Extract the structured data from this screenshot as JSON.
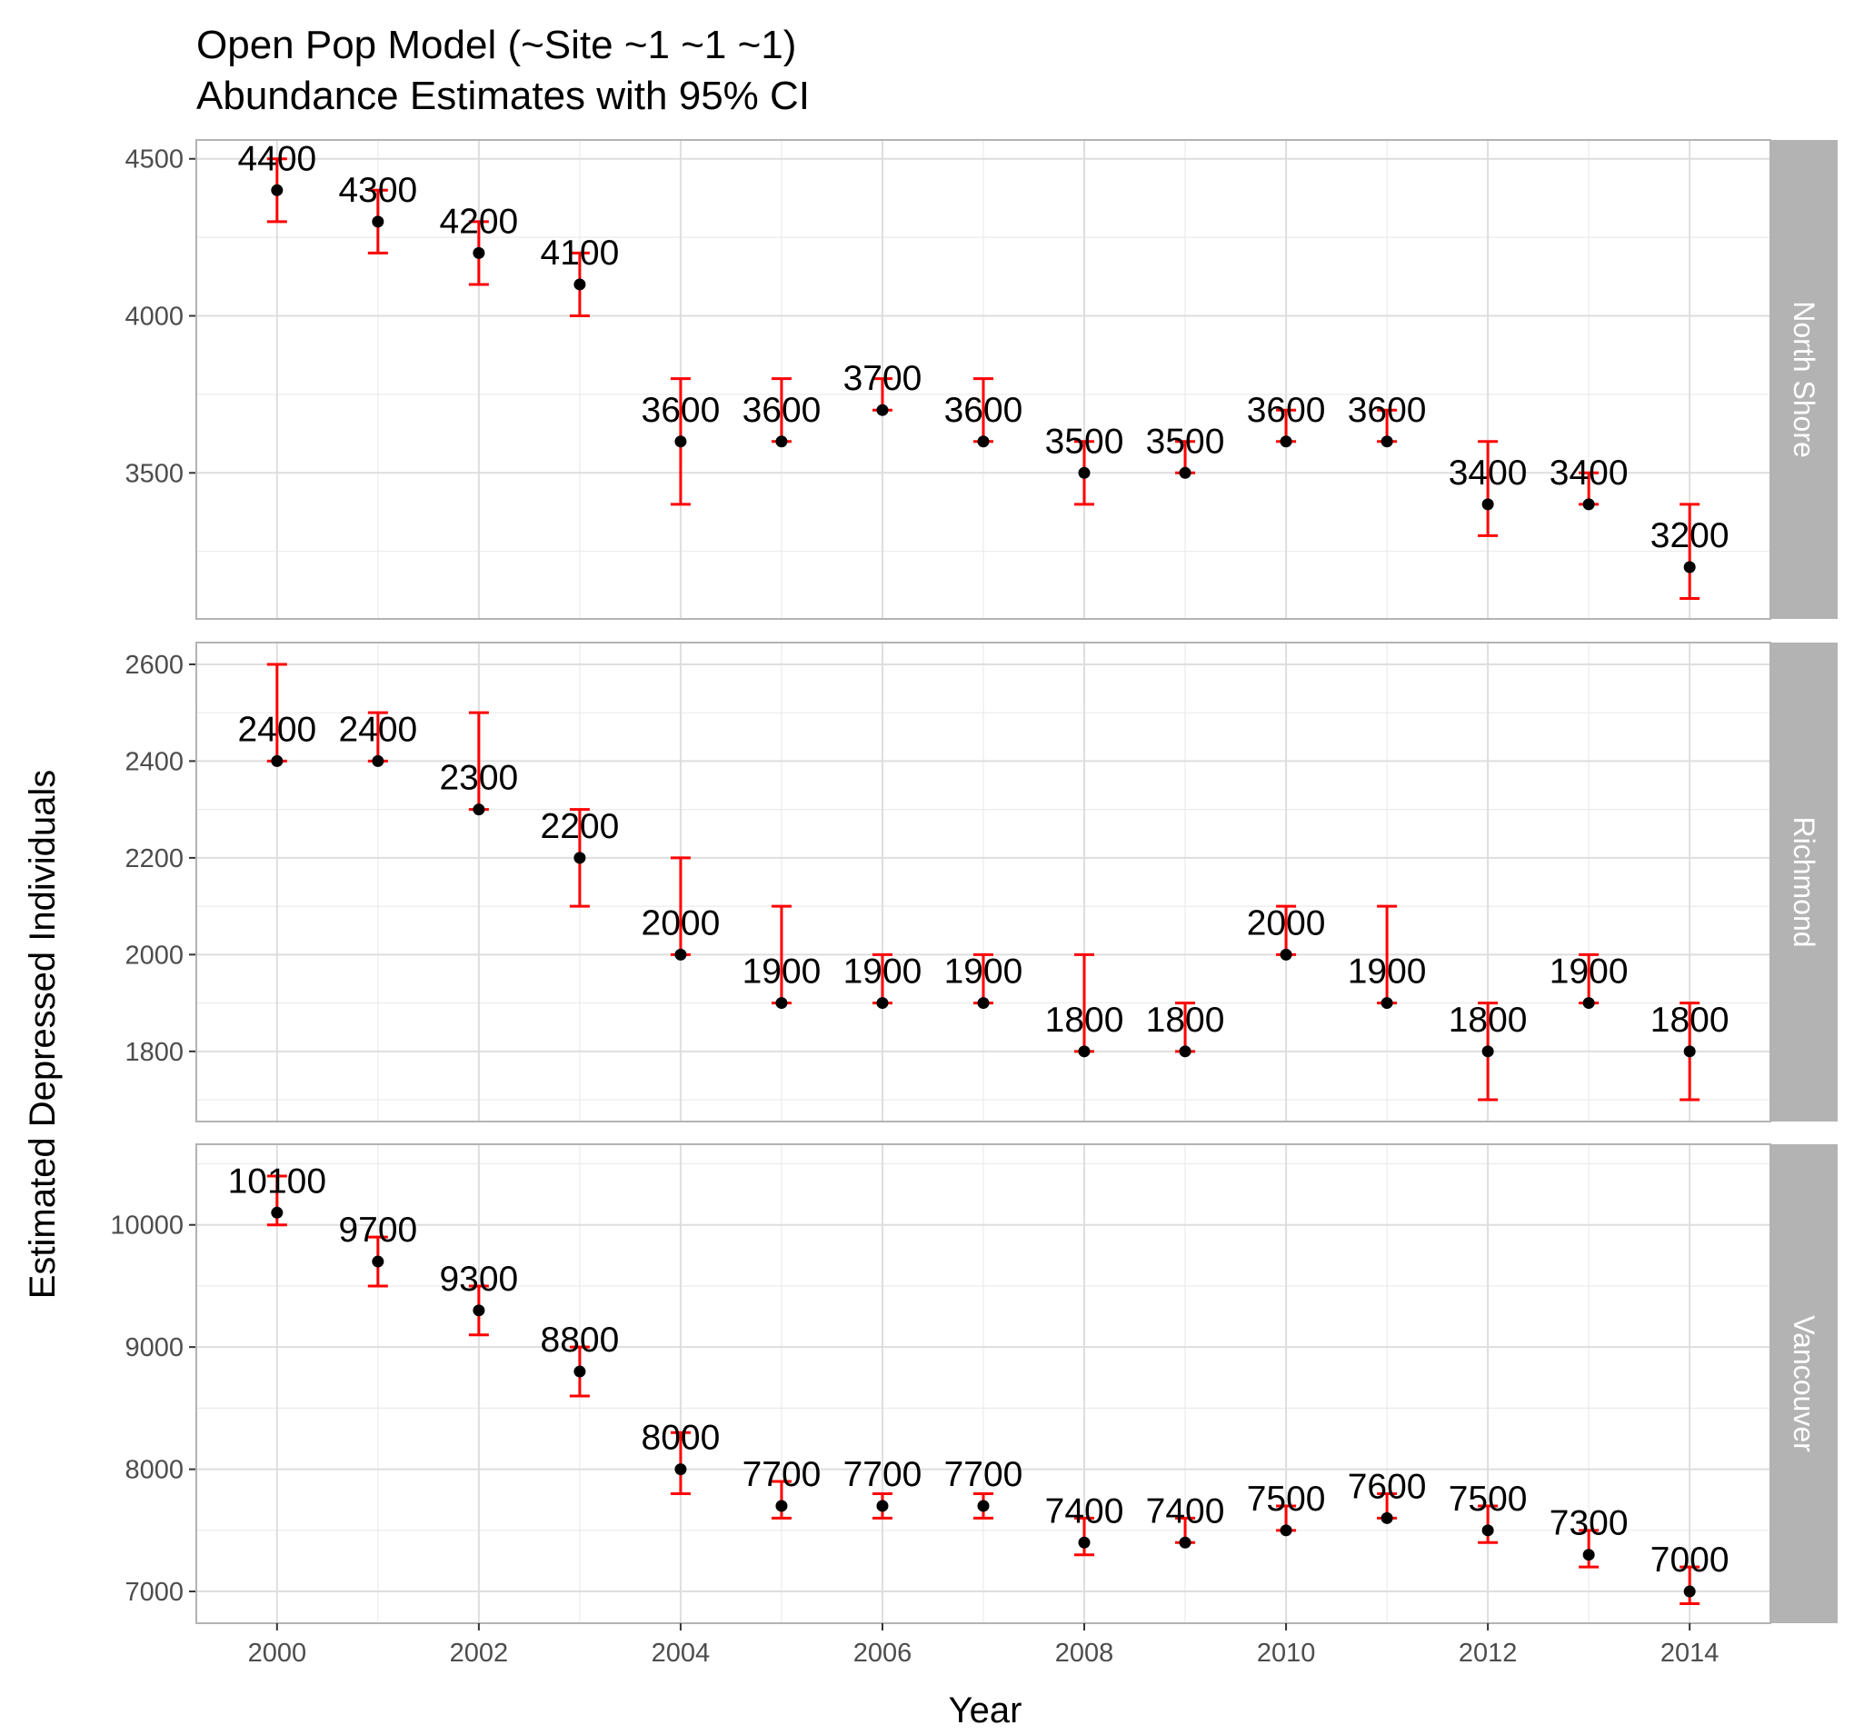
{
  "chart_data": {
    "type": "scatter",
    "title": "Open Pop Model (~Site ~1 ~1 ~1)",
    "subtitle": "Abundance Estimates with 95% CI",
    "xlabel": "Year",
    "ylabel": "Estimated Depressed Individuals",
    "x_ticks": [
      "2000",
      "2002",
      "2004",
      "2006",
      "2008",
      "2010",
      "2012",
      "2014"
    ],
    "xlim": [
      1999.2,
      2014.8
    ],
    "grid": true,
    "point_color": "#000000",
    "errorbar_color": "#ff0000",
    "strip_color": "#b3b3b3",
    "panels": [
      {
        "facet": "North Shore",
        "ylim": [
          3035,
          4560
        ],
        "y_ticks": [
          "3500",
          "4000",
          "4500"
        ],
        "points": [
          {
            "x": 2000,
            "y": 4400,
            "lo": 4300,
            "hi": 4500,
            "label": "4400"
          },
          {
            "x": 2001,
            "y": 4300,
            "lo": 4200,
            "hi": 4400,
            "label": "4300"
          },
          {
            "x": 2002,
            "y": 4200,
            "lo": 4100,
            "hi": 4300,
            "label": "4200"
          },
          {
            "x": 2003,
            "y": 4100,
            "lo": 4000,
            "hi": 4200,
            "label": "4100"
          },
          {
            "x": 2004,
            "y": 3600,
            "lo": 3400,
            "hi": 3800,
            "label": "3600"
          },
          {
            "x": 2005,
            "y": 3600,
            "lo": 3600,
            "hi": 3800,
            "label": "3600"
          },
          {
            "x": 2006,
            "y": 3700,
            "lo": 3700,
            "hi": 3800,
            "label": "3700"
          },
          {
            "x": 2007,
            "y": 3600,
            "lo": 3600,
            "hi": 3800,
            "label": "3600"
          },
          {
            "x": 2008,
            "y": 3500,
            "lo": 3400,
            "hi": 3600,
            "label": "3500"
          },
          {
            "x": 2009,
            "y": 3500,
            "lo": 3500,
            "hi": 3600,
            "label": "3500"
          },
          {
            "x": 2010,
            "y": 3600,
            "lo": 3600,
            "hi": 3700,
            "label": "3600"
          },
          {
            "x": 2011,
            "y": 3600,
            "lo": 3600,
            "hi": 3700,
            "label": "3600"
          },
          {
            "x": 2012,
            "y": 3400,
            "lo": 3300,
            "hi": 3600,
            "label": "3400"
          },
          {
            "x": 2013,
            "y": 3400,
            "lo": 3400,
            "hi": 3500,
            "label": "3400"
          },
          {
            "x": 2014,
            "y": 3200,
            "lo": 3100,
            "hi": 3400,
            "label": "3200"
          }
        ]
      },
      {
        "facet": "Richmond",
        "ylim": [
          1655,
          2645
        ],
        "y_ticks": [
          "1800",
          "2000",
          "2200",
          "2400",
          "2600"
        ],
        "points": [
          {
            "x": 2000,
            "y": 2400,
            "lo": 2400,
            "hi": 2600,
            "label": "2400"
          },
          {
            "x": 2001,
            "y": 2400,
            "lo": 2400,
            "hi": 2500,
            "label": "2400"
          },
          {
            "x": 2002,
            "y": 2300,
            "lo": 2300,
            "hi": 2500,
            "label": "2300"
          },
          {
            "x": 2003,
            "y": 2200,
            "lo": 2100,
            "hi": 2300,
            "label": "2200"
          },
          {
            "x": 2004,
            "y": 2000,
            "lo": 2000,
            "hi": 2200,
            "label": "2000"
          },
          {
            "x": 2005,
            "y": 1900,
            "lo": 1900,
            "hi": 2100,
            "label": "1900"
          },
          {
            "x": 2006,
            "y": 1900,
            "lo": 1900,
            "hi": 2000,
            "label": "1900"
          },
          {
            "x": 2007,
            "y": 1900,
            "lo": 1900,
            "hi": 2000,
            "label": "1900"
          },
          {
            "x": 2008,
            "y": 1800,
            "lo": 1800,
            "hi": 2000,
            "label": "1800"
          },
          {
            "x": 2009,
            "y": 1800,
            "lo": 1800,
            "hi": 1900,
            "label": "1800"
          },
          {
            "x": 2010,
            "y": 2000,
            "lo": 2000,
            "hi": 2100,
            "label": "2000"
          },
          {
            "x": 2011,
            "y": 1900,
            "lo": 1900,
            "hi": 2100,
            "label": "1900"
          },
          {
            "x": 2012,
            "y": 1800,
            "lo": 1700,
            "hi": 1900,
            "label": "1800"
          },
          {
            "x": 2013,
            "y": 1900,
            "lo": 1900,
            "hi": 2000,
            "label": "1900"
          },
          {
            "x": 2014,
            "y": 1800,
            "lo": 1700,
            "hi": 1900,
            "label": "1800"
          }
        ]
      },
      {
        "facet": "Vancouver",
        "ylim": [
          6740,
          10660
        ],
        "y_ticks": [
          "7000",
          "8000",
          "9000",
          "10000"
        ],
        "points": [
          {
            "x": 2000,
            "y": 10100,
            "lo": 10000,
            "hi": 10400,
            "label": "10100"
          },
          {
            "x": 2001,
            "y": 9700,
            "lo": 9500,
            "hi": 9900,
            "label": "9700"
          },
          {
            "x": 2002,
            "y": 9300,
            "lo": 9100,
            "hi": 9500,
            "label": "9300"
          },
          {
            "x": 2003,
            "y": 8800,
            "lo": 8600,
            "hi": 9000,
            "label": "8800"
          },
          {
            "x": 2004,
            "y": 8000,
            "lo": 7800,
            "hi": 8300,
            "label": "8000"
          },
          {
            "x": 2005,
            "y": 7700,
            "lo": 7600,
            "hi": 7900,
            "label": "7700"
          },
          {
            "x": 2006,
            "y": 7700,
            "lo": 7600,
            "hi": 7800,
            "label": "7700"
          },
          {
            "x": 2007,
            "y": 7700,
            "lo": 7600,
            "hi": 7800,
            "label": "7700"
          },
          {
            "x": 2008,
            "y": 7400,
            "lo": 7300,
            "hi": 7600,
            "label": "7400"
          },
          {
            "x": 2009,
            "y": 7400,
            "lo": 7400,
            "hi": 7600,
            "label": "7400"
          },
          {
            "x": 2010,
            "y": 7500,
            "lo": 7500,
            "hi": 7700,
            "label": "7500"
          },
          {
            "x": 2011,
            "y": 7600,
            "lo": 7600,
            "hi": 7800,
            "label": "7600"
          },
          {
            "x": 2012,
            "y": 7500,
            "lo": 7400,
            "hi": 7700,
            "label": "7500"
          },
          {
            "x": 2013,
            "y": 7300,
            "lo": 7200,
            "hi": 7500,
            "label": "7300"
          },
          {
            "x": 2014,
            "y": 7000,
            "lo": 6900,
            "hi": 7200,
            "label": "7000"
          }
        ]
      }
    ]
  }
}
